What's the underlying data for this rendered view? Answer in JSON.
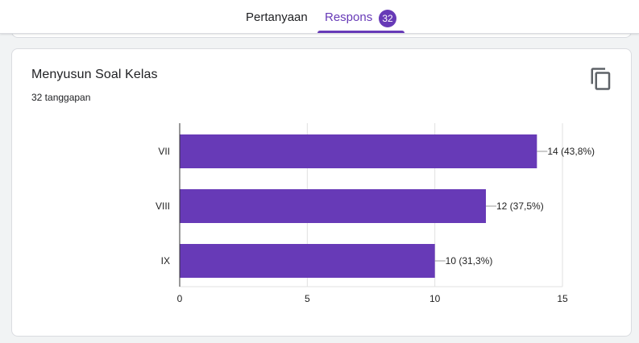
{
  "tabs": {
    "questions_label": "Pertanyaan",
    "responses_label": "Respons",
    "responses_count": "32"
  },
  "question": {
    "title": "Menyusun Soal Kelas",
    "response_count_text": "32 tanggapan",
    "copy_icon": "copy-icon"
  },
  "colors": {
    "accent": "#673ab7",
    "bar": "#673ab7"
  },
  "chart_data": {
    "type": "bar",
    "orientation": "horizontal",
    "categories": [
      "VII",
      "VIII",
      "IX"
    ],
    "values": [
      14,
      12,
      10
    ],
    "data_labels": [
      "14 (43,8%)",
      "12 (37,5%)",
      "10 (31,3%)"
    ],
    "xlim": [
      0,
      15
    ],
    "x_ticks": [
      "0",
      "5",
      "10",
      "15"
    ],
    "grid": true
  }
}
